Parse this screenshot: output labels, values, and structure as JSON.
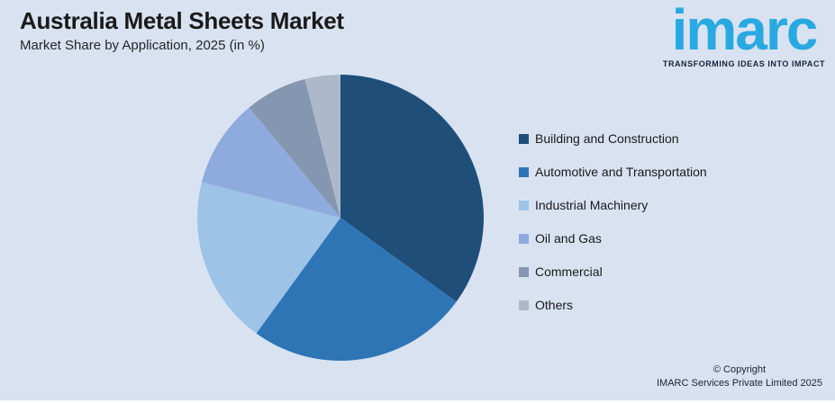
{
  "background_color": "#D9E2F1",
  "header": {
    "title": "Australia Metal Sheets Market",
    "subtitle": "Market Share by Application, 2025 (in %)"
  },
  "logo": {
    "brand": "imarc",
    "tagline": "TRANSFORMING IDEAS INTO IMPACT",
    "brand_color": "#29A9E2",
    "tagline_color": "#16243D"
  },
  "chart_data": {
    "type": "pie",
    "title": "Australia Metal Sheets Market",
    "subtitle": "Market Share by Application, 2025 (in %)",
    "unit": "percent",
    "categories": [
      "Building and Construction",
      "Automotive and Transportation",
      "Industrial Machinery",
      "Oil and Gas",
      "Commercial",
      "Others"
    ],
    "values": [
      35,
      25,
      19,
      10,
      7,
      4
    ],
    "colors": [
      "#1F4E79",
      "#2E75B6",
      "#9DC3E6",
      "#8FAADC",
      "#8496B0",
      "#ADB9CA"
    ],
    "start_angle_deg": 0,
    "direction": "clockwise",
    "legend_position": "right",
    "data_labels_shown": false
  },
  "footer": {
    "copyright_line1": "© Copyright",
    "copyright_line2": "IMARC Services Private Limited 2025"
  }
}
